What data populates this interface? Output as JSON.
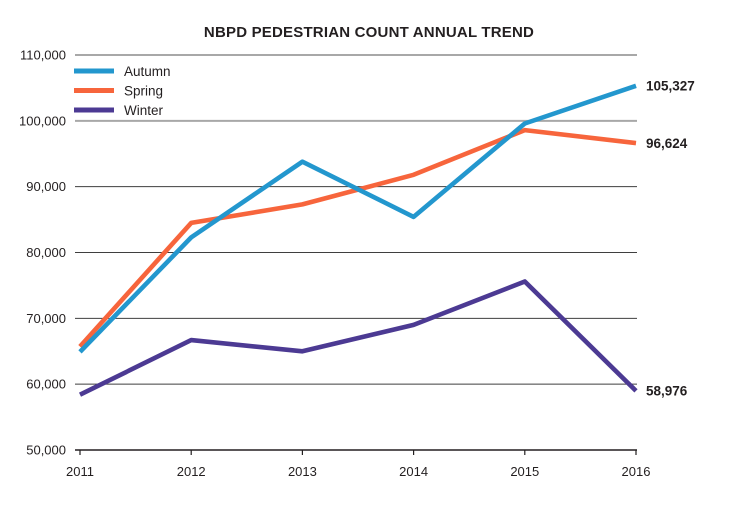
{
  "chart_data": {
    "type": "line",
    "title": "NBPD PEDESTRIAN COUNT ANNUAL TREND",
    "categories": [
      "2011",
      "2012",
      "2013",
      "2014",
      "2015",
      "2016"
    ],
    "xlabel": "",
    "ylabel": "",
    "ylim": [
      50000,
      110000
    ],
    "y_tick_step": 10000,
    "y_tick_labels": [
      "110,000",
      "100,000",
      "90,000",
      "80,000",
      "70,000",
      "60,000",
      "50,000"
    ],
    "grid": "horizontal",
    "legend_position": "top-left",
    "series": [
      {
        "name": "Autumn",
        "color": "#2397ce",
        "values": [
          64900,
          82300,
          93800,
          85400,
          99600,
          105327
        ],
        "end_label": "105,327"
      },
      {
        "name": "Spring",
        "color": "#f7653c",
        "values": [
          65700,
          84500,
          87300,
          91800,
          98600,
          96624
        ],
        "end_label": "96,624"
      },
      {
        "name": "Winter",
        "color": "#4c3a93",
        "values": [
          58400,
          66700,
          65000,
          69000,
          75600,
          58976
        ],
        "end_label": "58,976"
      }
    ],
    "colors": {
      "grid_major": "#a8a8a8",
      "grid_minor": "#3f3f3f",
      "axis": "#231f20",
      "text": "#231f20",
      "background": "#ffffff"
    }
  }
}
